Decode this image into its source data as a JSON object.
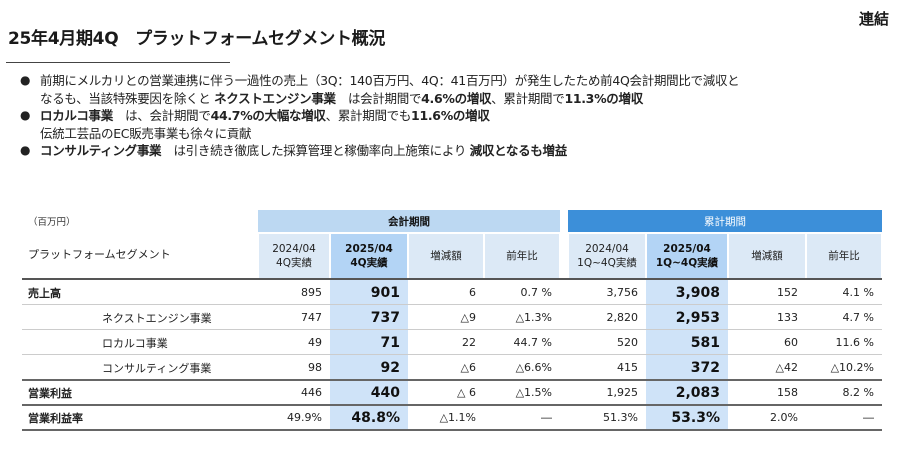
{
  "header": {
    "title": "25年4月期4Q　プラットフォームセグメント概況",
    "badge": "連結"
  },
  "bullets": [
    {
      "line1": [
        {
          "t": "前期にメルカリとの営業連携に伴う一過性の売上（3Q：140百万円、4Q：41百万円）が発生したため前4Q会計期間比で減収と",
          "b": false
        }
      ],
      "line2": [
        {
          "t": "なるも、当該特殊要因を除くと ",
          "b": false
        },
        {
          "t": "ネクストエンジン事業",
          "b": true
        },
        {
          "t": "　は会計期間で",
          "b": false
        },
        {
          "t": "4.6%の増収",
          "b": true
        },
        {
          "t": "、累計期間で",
          "b": false
        },
        {
          "t": "11.3%の増収",
          "b": true
        }
      ]
    },
    {
      "line1": [
        {
          "t": "ロカルコ事業",
          "b": true
        },
        {
          "t": "　は、会計期間で",
          "b": false
        },
        {
          "t": "44.7%の大幅な増収",
          "b": true
        },
        {
          "t": "、累計期間でも",
          "b": false
        },
        {
          "t": "11.6%の増収",
          "b": true
        }
      ],
      "line2": [
        {
          "t": "伝統工芸品のEC販売事業も徐々に貢献",
          "b": false
        }
      ]
    },
    {
      "line1": [
        {
          "t": "コンサルティング事業",
          "b": true
        },
        {
          "t": "　は引き続き徹底した採算管理と稼働率向上施策により ",
          "b": false
        },
        {
          "t": "減収となるも増益",
          "b": true
        }
      ]
    }
  ],
  "table": {
    "unit": "（百万円）",
    "segment_label": "プラットフォームセグメント",
    "band_kaikei": "会計期間",
    "band_ruikei": "累計期間",
    "columns": [
      {
        "l1": "2024/04",
        "l2": "4Q実績"
      },
      {
        "l1": "2025/04",
        "l2": "4Q実績"
      },
      {
        "l1": "増減額",
        "l2": ""
      },
      {
        "l1": "前年比",
        "l2": ""
      },
      {
        "l1": "2024/04",
        "l2": "1Q~4Q実績"
      },
      {
        "l1": "2025/04",
        "l2": "1Q~4Q実績"
      },
      {
        "l1": "増減額",
        "l2": ""
      },
      {
        "l1": "前年比",
        "l2": ""
      }
    ],
    "rows": [
      {
        "label": "売上高",
        "sub": false,
        "v": [
          "895",
          "901",
          "6",
          "0.7 %",
          "3,756",
          "3,908",
          "152",
          "4.1 %"
        ]
      },
      {
        "label": "ネクストエンジン事業",
        "sub": true,
        "v": [
          "747",
          "737",
          "△9",
          "△1.3%",
          "2,820",
          "2,953",
          "133",
          "4.7 %"
        ]
      },
      {
        "label": "ロカルコ事業",
        "sub": true,
        "v": [
          "49",
          "71",
          "22",
          "44.7 %",
          "520",
          "581",
          "60",
          "11.6 %"
        ]
      },
      {
        "label": "コンサルティング事業",
        "sub": true,
        "v": [
          "98",
          "92",
          "△6",
          "△6.6%",
          "415",
          "372",
          "△42",
          "△10.2%"
        ]
      },
      {
        "label": "営業利益",
        "sub": false,
        "v": [
          "446",
          "440",
          "△ 6",
          "△1.5%",
          "1,925",
          "2,083",
          "158",
          "8.2 %"
        ]
      },
      {
        "label": "営業利益率",
        "sub": false,
        "v": [
          "49.9%",
          "48.8%",
          "△1.1%",
          "―",
          "51.3%",
          "53.3%",
          "2.0%",
          "―"
        ]
      }
    ]
  }
}
